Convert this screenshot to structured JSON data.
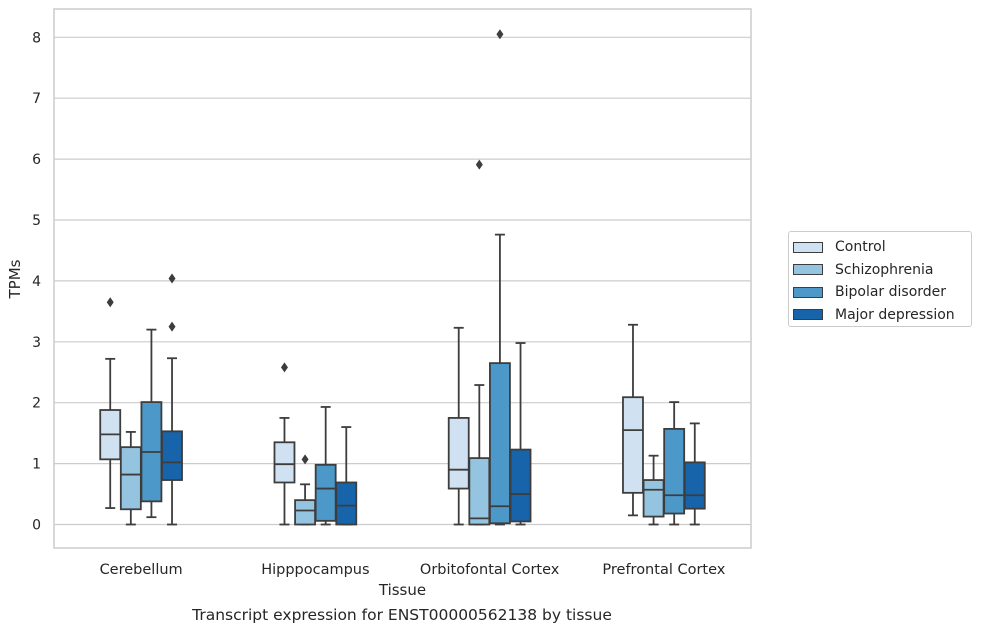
{
  "caption": "Transcript expression for ENST00000562138 by tissue",
  "colors": {
    "Control": "#d0e1f2",
    "Schizophrenia": "#94c4df",
    "Bipolar disorder": "#4b98c9",
    "Major depression": "#1764ab",
    "grid": "#cccccc",
    "line": "#3d3d3d"
  },
  "chart_data": {
    "type": "boxplot",
    "title": "",
    "xlabel": "Tissue",
    "ylabel": "TPMs",
    "ylim": [
      -0.4,
      8.45
    ],
    "yticks": [
      0,
      1,
      2,
      3,
      4,
      5,
      6,
      7,
      8
    ],
    "grid": true,
    "legend_position": "right",
    "categories": [
      "Cerebellum",
      "Hipppocampus",
      "Orbitofontal Cortex",
      "Prefrontal Cortex"
    ],
    "series": [
      {
        "name": "Control",
        "boxes": [
          {
            "whislo": 0.27,
            "q1": 1.07,
            "med": 1.48,
            "q3": 1.88,
            "whishi": 2.72,
            "fliers": [
              3.65
            ]
          },
          {
            "whislo": 0.0,
            "q1": 0.69,
            "med": 0.99,
            "q3": 1.35,
            "whishi": 1.75,
            "fliers": [
              2.58
            ]
          },
          {
            "whislo": 0.0,
            "q1": 0.59,
            "med": 0.9,
            "q3": 1.75,
            "whishi": 3.23,
            "fliers": []
          },
          {
            "whislo": 0.15,
            "q1": 0.52,
            "med": 1.55,
            "q3": 2.09,
            "whishi": 3.28,
            "fliers": []
          }
        ]
      },
      {
        "name": "Schizophrenia",
        "boxes": [
          {
            "whislo": 0.0,
            "q1": 0.25,
            "med": 0.82,
            "q3": 1.27,
            "whishi": 1.52,
            "fliers": []
          },
          {
            "whislo": 0.0,
            "q1": 0.0,
            "med": 0.23,
            "q3": 0.4,
            "whishi": 0.66,
            "fliers": [
              1.07
            ]
          },
          {
            "whislo": 0.0,
            "q1": 0.0,
            "med": 0.1,
            "q3": 1.09,
            "whishi": 2.29,
            "fliers": [
              5.91
            ]
          },
          {
            "whislo": 0.0,
            "q1": 0.13,
            "med": 0.57,
            "q3": 0.73,
            "whishi": 1.13,
            "fliers": []
          }
        ]
      },
      {
        "name": "Bipolar disorder",
        "boxes": [
          {
            "whislo": 0.12,
            "q1": 0.38,
            "med": 1.19,
            "q3": 2.01,
            "whishi": 3.2,
            "fliers": []
          },
          {
            "whislo": 0.0,
            "q1": 0.06,
            "med": 0.59,
            "q3": 0.98,
            "whishi": 1.93,
            "fliers": []
          },
          {
            "whislo": 0.0,
            "q1": 0.02,
            "med": 0.3,
            "q3": 2.65,
            "whishi": 4.76,
            "fliers": [
              8.05
            ]
          },
          {
            "whislo": 0.0,
            "q1": 0.18,
            "med": 0.48,
            "q3": 1.57,
            "whishi": 2.01,
            "fliers": []
          }
        ]
      },
      {
        "name": "Major depression",
        "boxes": [
          {
            "whislo": 0.0,
            "q1": 0.73,
            "med": 1.02,
            "q3": 1.53,
            "whishi": 2.73,
            "fliers": [
              3.25,
              4.04
            ]
          },
          {
            "whislo": 0.0,
            "q1": 0.0,
            "med": 0.31,
            "q3": 0.69,
            "whishi": 1.6,
            "fliers": []
          },
          {
            "whislo": 0.0,
            "q1": 0.05,
            "med": 0.5,
            "q3": 1.23,
            "whishi": 2.98,
            "fliers": []
          },
          {
            "whislo": 0.0,
            "q1": 0.26,
            "med": 0.48,
            "q3": 1.02,
            "whishi": 1.66,
            "fliers": []
          }
        ]
      }
    ]
  }
}
